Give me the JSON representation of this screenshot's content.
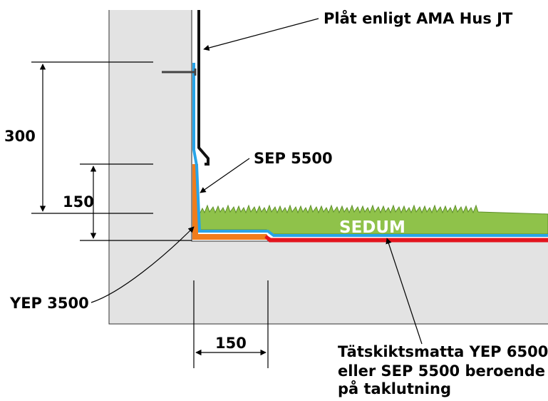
{
  "labels": {
    "plat": "Plåt enligt AMA Hus JT",
    "sep": "SEP 5500",
    "yep": "YEP 3500",
    "sedum": "SEDUM",
    "tatskikt_line1": "Tätskiktsmatta YEP 6500",
    "tatskikt_line2": "eller SEP 5500 beroende",
    "tatskikt_line3": "på taklutning"
  },
  "dimensions": {
    "upstand_total": "300",
    "upstand_lower": "150",
    "horizontal": "150"
  },
  "colors": {
    "concrete": "#e3e3e3",
    "blue_membrane": "#27a4e8",
    "orange_membrane": "#f07c1b",
    "red_membrane": "#e3141e",
    "sedum_green": "#8fc24a",
    "sedum_dark": "#5e8f2a",
    "flashing": "#111111"
  }
}
